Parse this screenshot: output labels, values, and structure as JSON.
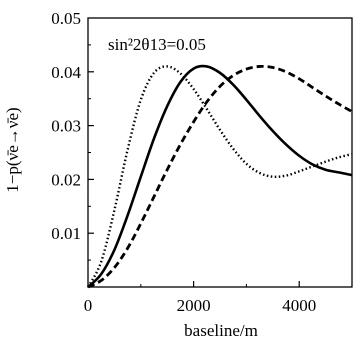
{
  "chart_data": {
    "type": "line",
    "title": "",
    "xlabel": "baseline/m",
    "ylabel": "1−p(ν̄e→ν̄e)",
    "xlim": [
      0,
      5000
    ],
    "ylim": [
      0,
      0.05
    ],
    "x_ticks": [
      0,
      2000,
      4000
    ],
    "x_tick_labels": [
      "0",
      "2000",
      "4000"
    ],
    "y_ticks": [
      0.01,
      0.02,
      0.03,
      0.04,
      0.05
    ],
    "y_tick_labels": [
      "0.01",
      "0.02",
      "0.03",
      "0.04",
      "0.05"
    ],
    "grid": false,
    "legend": "none",
    "annotation": "sin²2θ13=0.05",
    "series": [
      {
        "style": "dotted",
        "x": [
          0,
          250,
          500,
          750,
          1000,
          1250,
          1500,
          1750,
          2000,
          2250,
          2500,
          2750,
          3000,
          3250,
          3500,
          3750,
          4000,
          4250,
          4500,
          4750,
          5000
        ],
        "y": [
          0.0,
          0.0047,
          0.0143,
          0.0255,
          0.0348,
          0.0398,
          0.041,
          0.0397,
          0.0368,
          0.0331,
          0.0292,
          0.0257,
          0.0229,
          0.0212,
          0.0205,
          0.0207,
          0.0215,
          0.0224,
          0.0233,
          0.0241,
          0.0247
        ]
      },
      {
        "style": "solid",
        "x": [
          0,
          250,
          500,
          750,
          1000,
          1250,
          1500,
          1750,
          2000,
          2250,
          2500,
          2750,
          3000,
          3250,
          3500,
          3750,
          4000,
          4250,
          4500,
          4750,
          5000
        ],
        "y": [
          0.0,
          0.0024,
          0.0069,
          0.0133,
          0.0205,
          0.0276,
          0.0336,
          0.0381,
          0.0406,
          0.041,
          0.0398,
          0.0376,
          0.0348,
          0.0318,
          0.029,
          0.0265,
          0.0244,
          0.0228,
          0.0218,
          0.0213,
          0.0208
        ]
      },
      {
        "style": "dashed",
        "x": [
          0,
          250,
          500,
          750,
          1000,
          1250,
          1500,
          1750,
          2000,
          2250,
          2500,
          2750,
          3000,
          3250,
          3500,
          3750,
          4000,
          4250,
          4500,
          4750,
          5000
        ],
        "y": [
          0.0,
          0.0012,
          0.0036,
          0.0072,
          0.0118,
          0.0168,
          0.0218,
          0.0265,
          0.0307,
          0.0344,
          0.0373,
          0.0393,
          0.0405,
          0.041,
          0.0408,
          0.04,
          0.0387,
          0.0371,
          0.0355,
          0.034,
          0.0326
        ]
      }
    ]
  }
}
